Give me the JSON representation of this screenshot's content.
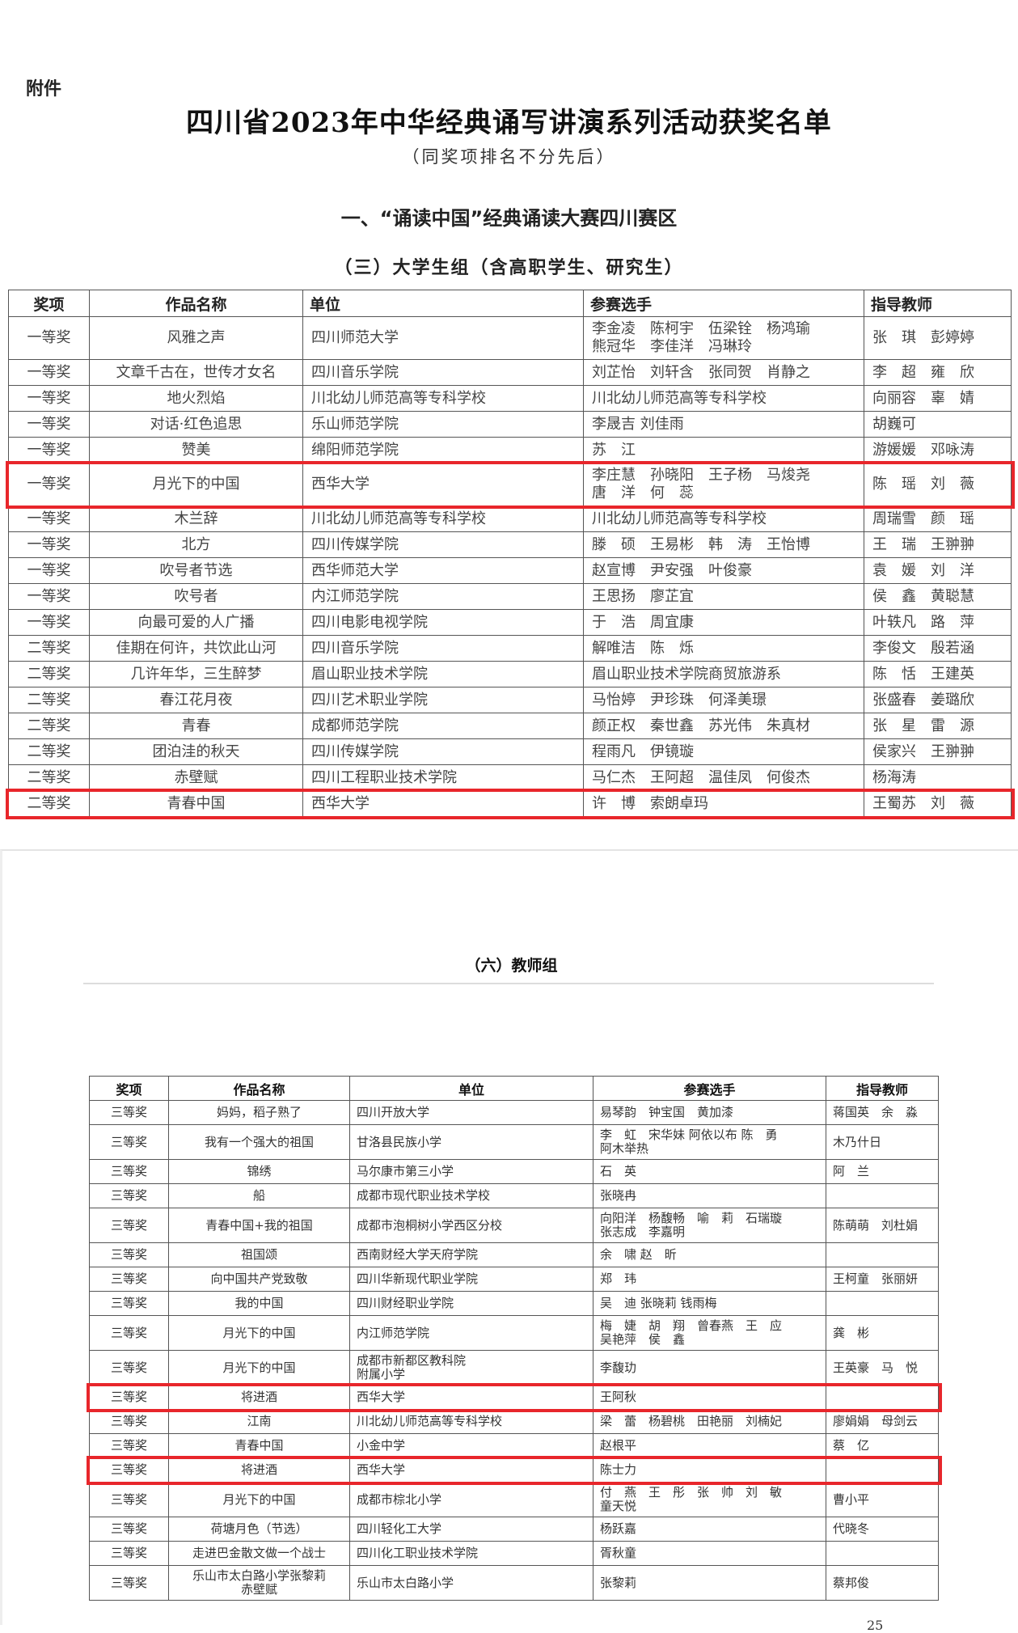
{
  "doc": {
    "attachment_label": "附件",
    "title": "四川省2023年中华经典诵写讲演系列活动获奖名单",
    "subtitle": "（同奖项排名不分先后）",
    "section": "一、“诵读中国”经典诵读大赛四川赛区",
    "page_number": "25"
  },
  "highlight_color": "#e8262b",
  "university_group": {
    "title": "（三）大学生组（含高职学生、研究生）",
    "headers": [
      "奖项",
      "作品名称",
      "单位",
      "参赛选手",
      "指导教师"
    ],
    "rows": [
      {
        "cells": [
          "一等奖",
          "风雅之声",
          "四川师范大学",
          "李金凌　陈柯宇　伍梁铨　杨鸿瑜\n熊冠华　李佳洋　冯琳玲",
          "张　琪　彭婷婷"
        ]
      },
      {
        "cells": [
          "一等奖",
          "文章千古在，世传才女名",
          "四川音乐学院",
          "刘芷怡　刘轩含　张同贺　肖静之",
          "李　超　雍　欣"
        ]
      },
      {
        "cells": [
          "一等奖",
          "地火烈焰",
          "川北幼儿师范高等专科学校",
          "川北幼儿师范高等专科学校",
          "向丽容　辜　婧"
        ]
      },
      {
        "cells": [
          "一等奖",
          "对话·红色追思",
          "乐山师范学院",
          "李晟吉 刘佳雨",
          "胡巍可"
        ]
      },
      {
        "cells": [
          "一等奖",
          "赞美",
          "绵阳师范学院",
          "苏　江",
          "游媛媛　邓咏涛"
        ]
      },
      {
        "cells": [
          "一等奖",
          "月光下的中国",
          "西华大学",
          "李庄慧　孙晓阳　王子杨　马焌尧\n唐　洋　何　蕊",
          "陈　瑶　刘　薇"
        ],
        "highlighted": true
      },
      {
        "cells": [
          "一等奖",
          "木兰辞",
          "川北幼儿师范高等专科学校",
          "川北幼儿师范高等专科学校",
          "周瑞雪　颜　瑶"
        ]
      },
      {
        "cells": [
          "一等奖",
          "北方",
          "四川传媒学院",
          "滕　硕　王易彬　韩　涛　王怡博",
          "王　瑞　王翀翀"
        ]
      },
      {
        "cells": [
          "一等奖",
          "吹号者节选",
          "西华师范大学",
          "赵宣博　尹安强　叶俊豪",
          "袁　媛　刘　洋"
        ]
      },
      {
        "cells": [
          "一等奖",
          "吹号者",
          "内江师范学院",
          "王思扬　廖芷宜",
          "侯　鑫　黄聪慧"
        ]
      },
      {
        "cells": [
          "一等奖",
          "向最可爱的人广播",
          "四川电影电视学院",
          "于　浩　周宜康",
          "叶轶凡　路　萍"
        ]
      },
      {
        "cells": [
          "二等奖",
          "佳期在何许，共饮此山河",
          "四川音乐学院",
          "解唯洁　陈　烁",
          "李俊文　殷若涵"
        ]
      },
      {
        "cells": [
          "二等奖",
          "几许年华，三生醉梦",
          "眉山职业技术学院",
          "眉山职业技术学院商贸旅游系",
          "陈　恬　王建英"
        ]
      },
      {
        "cells": [
          "二等奖",
          "春江花月夜",
          "四川艺术职业学院",
          "马怡婷　尹珍珠　何泽美璟",
          "张盛春　姜璐欣"
        ]
      },
      {
        "cells": [
          "二等奖",
          "青春",
          "成都师范学院",
          "颜正权　秦世鑫　苏光伟　朱真材",
          "张　星　雷　源"
        ]
      },
      {
        "cells": [
          "二等奖",
          "团泊洼的秋天",
          "四川传媒学院",
          "程雨凡　伊镜璇",
          "侯家兴　王翀翀"
        ]
      },
      {
        "cells": [
          "二等奖",
          "赤壁赋",
          "四川工程职业技术学院",
          "马仁杰　王阿超　温佳凤　何俊杰",
          "杨海涛"
        ]
      },
      {
        "cells": [
          "二等奖",
          "青春中国",
          "西华大学",
          "许　博　索朗卓玛",
          "王蜀苏　刘　薇"
        ],
        "highlighted": true
      }
    ]
  },
  "teacher_group": {
    "title": "（六）教师组",
    "headers": [
      "奖项",
      "作品名称",
      "单位",
      "参赛选手",
      "指导教师"
    ],
    "rows": [
      {
        "cells": [
          "三等奖",
          "妈妈，稻子熟了",
          "四川开放大学",
          "易琴韵　钟宝国　黄加漆",
          "蒋国英　余　淼"
        ]
      },
      {
        "cells": [
          "三等奖",
          "我有一个强大的祖国",
          "甘洛县民族小学",
          "李　虹　宋华妹 阿依以布 陈　勇\n阿木举热",
          "木乃什日"
        ]
      },
      {
        "cells": [
          "三等奖",
          "锦绣",
          "马尔康市第三小学",
          "石　英",
          "阿　兰"
        ]
      },
      {
        "cells": [
          "三等奖",
          "船",
          "成都市现代职业技术学校",
          "张晓冉",
          ""
        ]
      },
      {
        "cells": [
          "三等奖",
          "青春中国+我的祖国",
          "成都市泡桐树小学西区分校",
          "向阳洋　杨馥畅　喻　莉　石瑞璇\n张志成　李嘉明",
          "陈萌萌　刘杜娟"
        ]
      },
      {
        "cells": [
          "三等奖",
          "祖国颂",
          "西南财经大学天府学院",
          "余　啸 赵　昕",
          ""
        ]
      },
      {
        "cells": [
          "三等奖",
          "向中国共产党致敬",
          "四川华新现代职业学院",
          "郑　玮",
          "王柯童　张丽妍"
        ]
      },
      {
        "cells": [
          "三等奖",
          "我的中国",
          "四川财经职业学院",
          "吴　迪 张晓莉 钱雨梅",
          ""
        ]
      },
      {
        "cells": [
          "三等奖",
          "月光下的中国",
          "内江师范学院",
          "梅　婕　胡　翔　曾春燕　王　应\n吴艳萍　侯　鑫",
          "龚　彬"
        ]
      },
      {
        "cells": [
          "三等奖",
          "月光下的中国",
          "成都市新都区教科院\n附属小学",
          "李馥玏",
          "王英豪　马　悦"
        ]
      },
      {
        "cells": [
          "三等奖",
          "将进酒",
          "西华大学",
          "王阿秋",
          ""
        ],
        "highlighted": true
      },
      {
        "cells": [
          "三等奖",
          "江南",
          "川北幼儿师范高等专科学校",
          "梁　蕾　杨碧桃　田艳丽　刘楠妃",
          "廖娟娟　母剑云"
        ]
      },
      {
        "cells": [
          "三等奖",
          "青春中国",
          "小金中学",
          "赵根平",
          "蔡　亿"
        ]
      },
      {
        "cells": [
          "三等奖",
          "将进酒",
          "西华大学",
          "陈士力",
          ""
        ],
        "highlighted": true
      },
      {
        "cells": [
          "三等奖",
          "月光下的中国",
          "成都市棕北小学",
          "付　燕　王　彤　张　帅　刘　敏\n童天悦",
          "曹小平"
        ]
      },
      {
        "cells": [
          "三等奖",
          "荷塘月色（节选）",
          "四川轻化工大学",
          "杨跃嘉",
          "代晓冬"
        ]
      },
      {
        "cells": [
          "三等奖",
          "走进巴金散文做一个战士",
          "四川化工职业技术学院",
          "胥秋童",
          ""
        ]
      },
      {
        "cells": [
          "三等奖",
          "乐山市太白路小学张黎莉\n赤壁赋",
          "乐山市太白路小学",
          "张黎莉",
          "蔡邦俊"
        ]
      }
    ]
  }
}
